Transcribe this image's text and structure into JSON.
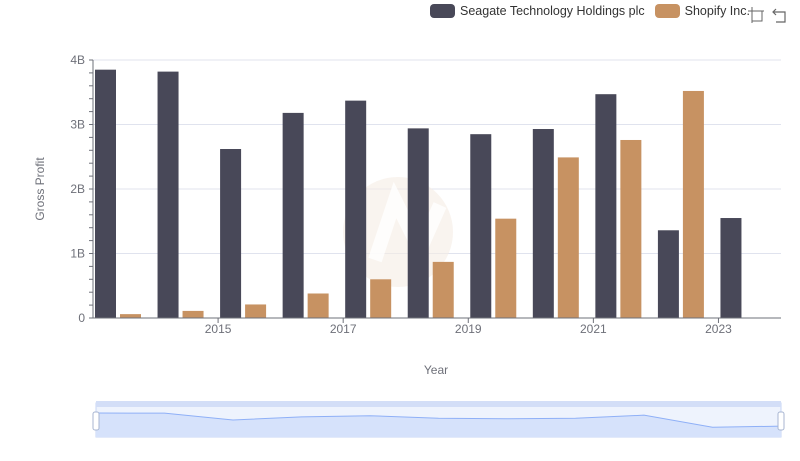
{
  "chart_data": {
    "type": "bar",
    "title": "",
    "xlabel": "Year",
    "ylabel": "Gross Profit",
    "categories": [
      "2014",
      "2015",
      "2016",
      "2017",
      "2018",
      "2019",
      "2020",
      "2021",
      "2022",
      "2023",
      "2024"
    ],
    "x_tick_labels": [
      "2015",
      "2017",
      "2019",
      "2021",
      "2023"
    ],
    "y_tick_labels": [
      "0",
      "1B",
      "2B",
      "3B",
      "4B"
    ],
    "ylim": [
      0,
      4000000000
    ],
    "series": [
      {
        "name": "Seagate Technology Holdings plc",
        "color": "#484858",
        "values": [
          3850000000,
          3820000000,
          2620000000,
          3180000000,
          3370000000,
          2940000000,
          2850000000,
          2930000000,
          3470000000,
          1360000000,
          1550000000
        ]
      },
      {
        "name": "Shopify Inc.",
        "color": "#c79262",
        "values": [
          60000000,
          110000000,
          210000000,
          380000000,
          600000000,
          870000000,
          1540000000,
          2490000000,
          2760000000,
          3520000000,
          null
        ]
      }
    ],
    "legend_position": "top-right",
    "grid": true
  },
  "legend": {
    "items": [
      {
        "label": "Seagate Technology Holdings plc",
        "color": "#484858"
      },
      {
        "label": "Shopify Inc.",
        "color": "#c79262"
      }
    ]
  },
  "toolbar": {
    "zoom_icon": "zoom-select-icon",
    "reset_icon": "restore-icon"
  },
  "colors": {
    "grid": "#e0e3ee",
    "axis": "#6e7079",
    "slider_fill": "#d6e2fb",
    "slider_line": "#8fb0f7"
  }
}
